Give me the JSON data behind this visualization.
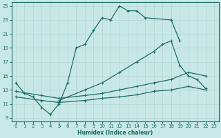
{
  "xlabel": "Humidex (Indice chaleur)",
  "xlim": [
    -0.5,
    23.5
  ],
  "ylim": [
    8.5,
    25.5
  ],
  "xticks": [
    0,
    1,
    2,
    3,
    4,
    5,
    6,
    7,
    8,
    9,
    10,
    11,
    12,
    13,
    14,
    15,
    16,
    17,
    18,
    19,
    20,
    21,
    22,
    23
  ],
  "yticks": [
    9,
    11,
    13,
    15,
    17,
    19,
    21,
    23,
    25
  ],
  "bg_color": "#c8e8e6",
  "line_color": "#1a6b65",
  "grid_color": "#b8d8d4",
  "line1_x": [
    0,
    1,
    2,
    3,
    4,
    5,
    6,
    7,
    8,
    9,
    10,
    11,
    12,
    13,
    14,
    15,
    18,
    19
  ],
  "line1_y": [
    14.0,
    12.5,
    12.0,
    10.5,
    9.5,
    11.0,
    14.0,
    19.0,
    19.5,
    21.5,
    23.3,
    23.0,
    25.0,
    24.3,
    24.3,
    23.3,
    23.0,
    20.0
  ],
  "line2_x": [
    5,
    8,
    10,
    12,
    14,
    16,
    17,
    18,
    19,
    20,
    21,
    22
  ],
  "line2_y": [
    11.5,
    13.0,
    14.0,
    15.5,
    17.0,
    18.5,
    19.5,
    20.0,
    16.5,
    15.0,
    14.5,
    13.2
  ],
  "line3_x": [
    0,
    3,
    5,
    8,
    10,
    12,
    14,
    16,
    18,
    20,
    22
  ],
  "line3_y": [
    12.8,
    12.2,
    11.8,
    12.2,
    12.5,
    13.0,
    13.5,
    14.0,
    14.5,
    15.5,
    15.0
  ],
  "line4_x": [
    0,
    3,
    5,
    8,
    10,
    12,
    14,
    16,
    18,
    20,
    22
  ],
  "line4_y": [
    12.0,
    11.5,
    11.2,
    11.5,
    11.8,
    12.0,
    12.3,
    12.8,
    13.0,
    13.5,
    13.0
  ]
}
